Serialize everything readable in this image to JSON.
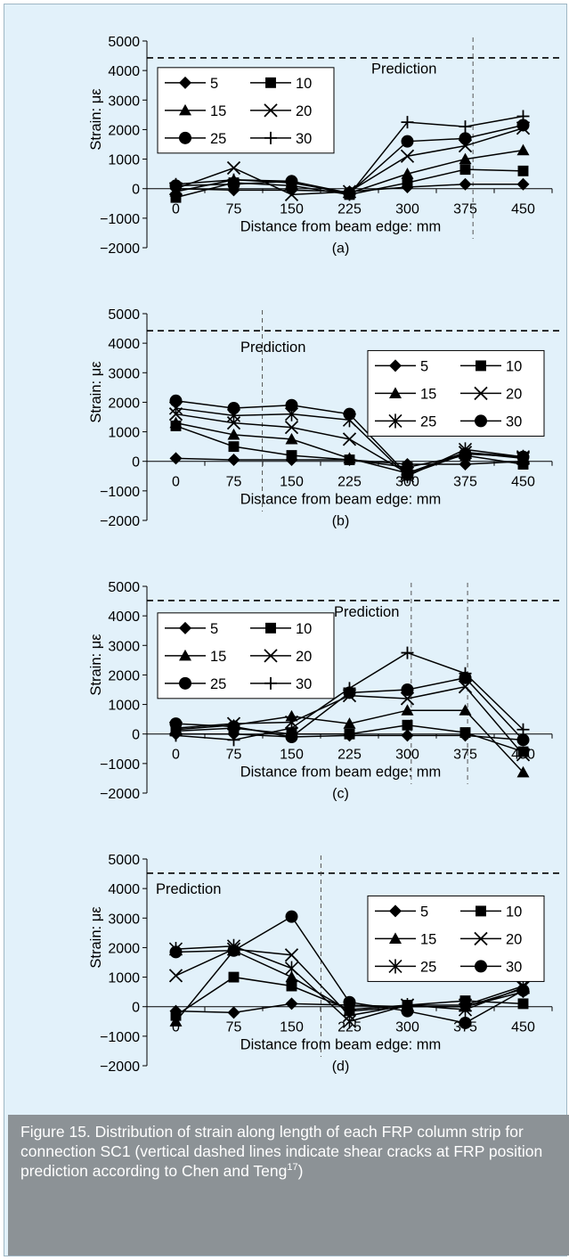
{
  "figure": {
    "caption_main": "Figure 15. Distribution of strain along length of each FRP column strip for connection SC1 (vertical dashed lines indicate shear cracks at FRP position prediction according to Chen and Teng",
    "caption_ref": "17",
    "caption_end": ")"
  },
  "chart_data": [
    {
      "type": "line",
      "panel_label": "(a)",
      "xlabel": "Distance from beam edge: mm",
      "ylabel": "Strain: με",
      "x": [
        0,
        75,
        150,
        225,
        300,
        375,
        450
      ],
      "ylim": [
        -2000,
        5000
      ],
      "yticks": [
        -2000,
        -1000,
        0,
        1000,
        2000,
        3000,
        4000,
        5000
      ],
      "prediction_label": "Prediction",
      "prediction_strain": 4430,
      "crack_positions_mm": [
        385
      ],
      "legend_placement": "top-left",
      "series": [
        {
          "name": "5",
          "marker": "diamond",
          "values": [
            0,
            -50,
            -50,
            -100,
            50,
            150,
            150
          ]
        },
        {
          "name": "10",
          "marker": "square",
          "values": [
            -300,
            200,
            100,
            -200,
            200,
            650,
            600
          ]
        },
        {
          "name": "15",
          "marker": "triangle",
          "values": [
            -100,
            300,
            200,
            -150,
            500,
            1000,
            1300
          ]
        },
        {
          "name": "20",
          "marker": "x",
          "values": [
            0,
            700,
            -200,
            -100,
            1100,
            1450,
            2050
          ]
        },
        {
          "name": "25",
          "marker": "circle",
          "values": [
            100,
            150,
            250,
            -150,
            1600,
            1700,
            2150
          ]
        },
        {
          "name": "30",
          "marker": "plus",
          "values": [
            150,
            300,
            250,
            -200,
            2250,
            2100,
            2450
          ]
        }
      ]
    },
    {
      "type": "line",
      "panel_label": "(b)",
      "xlabel": "Distance from beam edge: mm",
      "ylabel": "Strain: με",
      "x": [
        0,
        75,
        150,
        225,
        300,
        375,
        450
      ],
      "ylim": [
        -2000,
        5000
      ],
      "yticks": [
        -2000,
        -1000,
        0,
        1000,
        2000,
        3000,
        4000,
        5000
      ],
      "prediction_label": "Prediction",
      "prediction_strain": 4420,
      "crack_positions_mm": [
        112
      ],
      "legend_placement": "top-right",
      "series": [
        {
          "name": "5",
          "marker": "diamond",
          "values": [
            100,
            50,
            50,
            50,
            -100,
            -100,
            0
          ]
        },
        {
          "name": "10",
          "marker": "square",
          "values": [
            1200,
            500,
            200,
            50,
            -200,
            200,
            -100
          ]
        },
        {
          "name": "15",
          "marker": "triangle",
          "values": [
            1300,
            900,
            750,
            100,
            -400,
            300,
            150
          ]
        },
        {
          "name": "20",
          "marker": "x",
          "values": [
            1600,
            1300,
            1150,
            750,
            -400,
            300,
            100
          ]
        },
        {
          "name": "25",
          "marker": "asterisk",
          "values": [
            1800,
            1550,
            1600,
            1400,
            -500,
            400,
            150
          ]
        },
        {
          "name": "30",
          "marker": "circle",
          "values": [
            2050,
            1800,
            1900,
            1600,
            -450,
            250,
            150
          ]
        }
      ]
    },
    {
      "type": "line",
      "panel_label": "(c)",
      "xlabel": "Distance from beam edge: mm",
      "ylabel": "Strain: με",
      "x": [
        0,
        75,
        150,
        225,
        300,
        375,
        450
      ],
      "ylim": [
        -2000,
        5000
      ],
      "yticks": [
        -2000,
        -1000,
        0,
        1000,
        2000,
        3000,
        4000,
        5000
      ],
      "prediction_label": "Prediction",
      "prediction_strain": 4520,
      "crack_positions_mm": [
        305,
        378
      ],
      "legend_placement": "top-left",
      "series": [
        {
          "name": "5",
          "marker": "diamond",
          "values": [
            0,
            0,
            -100,
            -50,
            -50,
            -50,
            -200
          ]
        },
        {
          "name": "10",
          "marker": "square",
          "values": [
            100,
            200,
            0,
            0,
            300,
            50,
            -600
          ]
        },
        {
          "name": "15",
          "marker": "triangle",
          "values": [
            150,
            300,
            600,
            350,
            800,
            800,
            -1300
          ]
        },
        {
          "name": "20",
          "marker": "x",
          "values": [
            200,
            350,
            400,
            1300,
            1200,
            1600,
            -700
          ]
        },
        {
          "name": "25",
          "marker": "circle",
          "values": [
            350,
            250,
            -100,
            1400,
            1500,
            1900,
            -200
          ]
        },
        {
          "name": "30",
          "marker": "plus",
          "values": [
            -50,
            -200,
            200,
            1550,
            2750,
            2050,
            150
          ]
        }
      ]
    },
    {
      "type": "line",
      "panel_label": "(d)",
      "xlabel": "Distance from beam edge: mm",
      "ylabel": "Strain: με",
      "x": [
        0,
        75,
        150,
        225,
        300,
        375,
        450
      ],
      "ylim": [
        -2000,
        5000
      ],
      "yticks": [
        -2000,
        -1000,
        0,
        1000,
        2000,
        3000,
        4000,
        5000
      ],
      "prediction_label": "Prediction",
      "prediction_strain": 4520,
      "crack_positions_mm": [
        188
      ],
      "legend_placement": "top-right",
      "series": [
        {
          "name": "5",
          "marker": "diamond",
          "values": [
            -150,
            -200,
            100,
            50,
            0,
            0,
            500
          ]
        },
        {
          "name": "10",
          "marker": "square",
          "values": [
            -300,
            1000,
            700,
            -100,
            50,
            200,
            100
          ]
        },
        {
          "name": "15",
          "marker": "triangle",
          "values": [
            -500,
            1900,
            1000,
            -150,
            0,
            0,
            600
          ]
        },
        {
          "name": "20",
          "marker": "x",
          "values": [
            1050,
            1950,
            1750,
            -300,
            50,
            50,
            700
          ]
        },
        {
          "name": "25",
          "marker": "asterisk",
          "values": [
            1950,
            2050,
            1300,
            -500,
            50,
            -100,
            650
          ]
        },
        {
          "name": "30",
          "marker": "circle",
          "values": [
            1850,
            1900,
            3050,
            150,
            -150,
            -550,
            550
          ]
        }
      ]
    }
  ]
}
